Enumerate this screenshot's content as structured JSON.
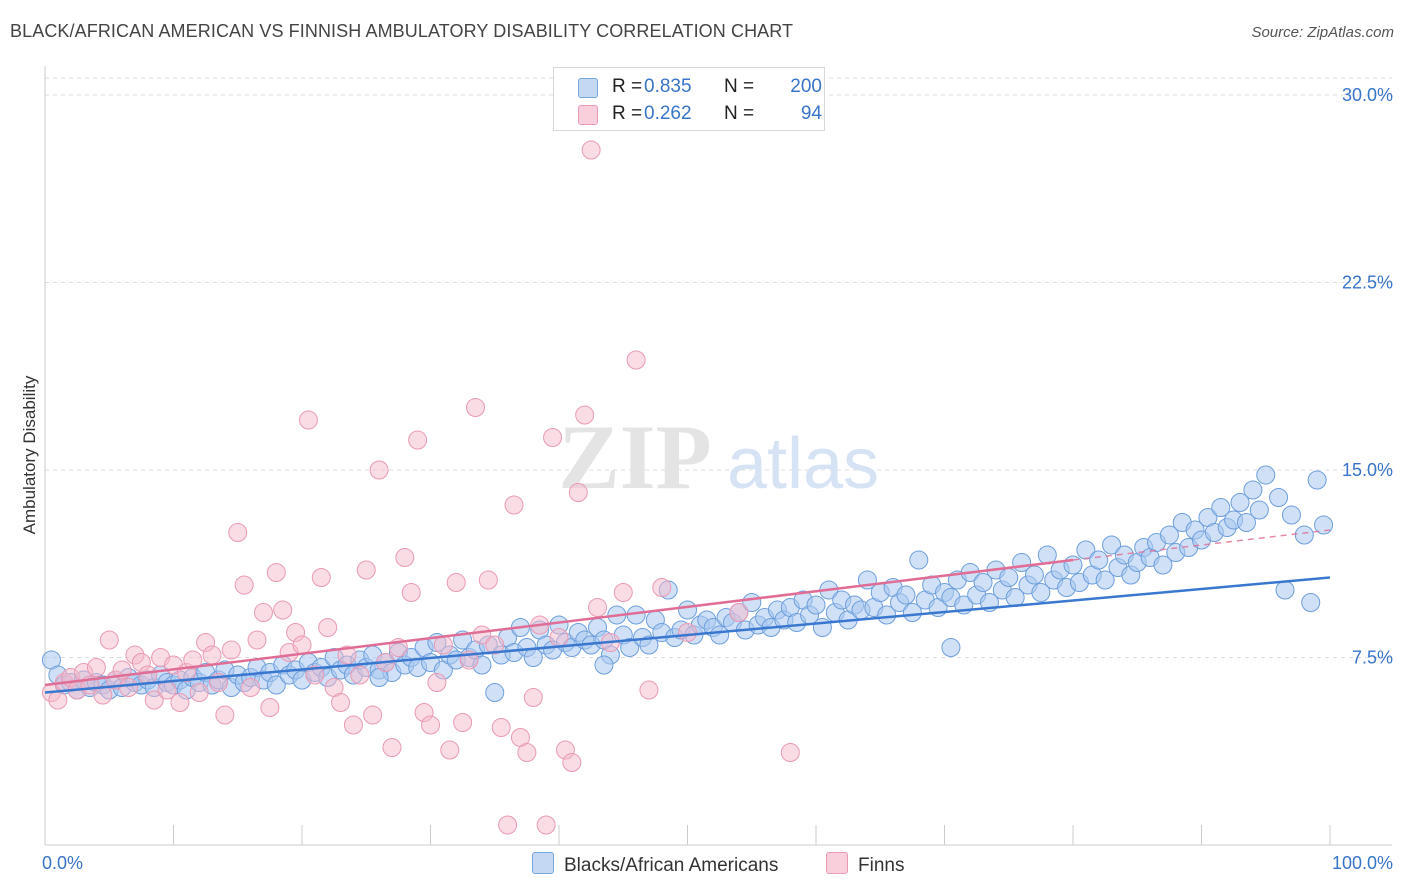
{
  "header": {
    "title": "BLACK/AFRICAN AMERICAN VS FINNISH AMBULATORY DISABILITY CORRELATION CHART",
    "source": "Source: ZipAtlas.com"
  },
  "watermark": {
    "zip": "ZIP",
    "atlas": "atlas"
  },
  "legend_top": {
    "rows": [
      {
        "r_label": "R =",
        "r_value": "0.835",
        "n_label": "N =",
        "n_value": "200",
        "color": "#a9c8f0"
      },
      {
        "r_label": "R =",
        "r_value": "0.262",
        "n_label": "N =",
        "n_value": "94",
        "color": "#f6b9cc"
      }
    ]
  },
  "legend_bottom": {
    "items": [
      {
        "label": "Blacks/African Americans",
        "color": "#a9c8f0"
      },
      {
        "label": "Finns",
        "color": "#f6b9cc"
      }
    ]
  },
  "chart_data": {
    "type": "scatter",
    "title": "BLACK/AFRICAN AMERICAN VS FINNISH AMBULATORY DISABILITY CORRELATION CHART",
    "xlabel": "",
    "ylabel": "Ambulatory Disability",
    "xlim": [
      0,
      100
    ],
    "ylim": [
      0,
      31
    ],
    "x_tick_labels": [
      "0.0%",
      "100.0%"
    ],
    "y_ticks": [
      7.5,
      15.0,
      22.5,
      30.0
    ],
    "y_tick_labels": [
      "7.5%",
      "15.0%",
      "22.5%",
      "30.0%"
    ],
    "grid": true,
    "legend_placement": "top-center",
    "colors": {
      "blue": "#3a78d0",
      "pink": "#e06d96",
      "blue_fill": "#a9c8f0",
      "pink_fill": "#f6b9cc",
      "tick_text": "#3874c8"
    },
    "series": [
      {
        "name": "Blacks/African Americans",
        "R": 0.835,
        "N": 200,
        "trend": {
          "x": [
            0,
            100
          ],
          "y": [
            6.1,
            10.7
          ]
        },
        "points": [
          [
            0.5,
            7.4
          ],
          [
            1,
            6.8
          ],
          [
            1.5,
            6.4
          ],
          [
            2,
            6.5
          ],
          [
            2.5,
            6.2
          ],
          [
            3,
            6.6
          ],
          [
            3.5,
            6.3
          ],
          [
            4,
            6.5
          ],
          [
            4.5,
            6.4
          ],
          [
            5,
            6.2
          ],
          [
            5.5,
            6.6
          ],
          [
            6,
            6.3
          ],
          [
            6.5,
            6.7
          ],
          [
            7,
            6.5
          ],
          [
            7.5,
            6.4
          ],
          [
            8,
            6.6
          ],
          [
            8.5,
            6.3
          ],
          [
            9,
            6.8
          ],
          [
            9.5,
            6.5
          ],
          [
            10,
            6.4
          ],
          [
            10.5,
            6.6
          ],
          [
            11,
            6.2
          ],
          [
            11.5,
            6.7
          ],
          [
            12,
            6.5
          ],
          [
            12.5,
            6.9
          ],
          [
            13,
            6.4
          ],
          [
            13.5,
            6.6
          ],
          [
            14,
            7.0
          ],
          [
            14.5,
            6.3
          ],
          [
            15,
            6.8
          ],
          [
            15.5,
            6.5
          ],
          [
            16,
            6.7
          ],
          [
            16.5,
            7.1
          ],
          [
            17,
            6.6
          ],
          [
            17.5,
            6.9
          ],
          [
            18,
            6.4
          ],
          [
            18.5,
            7.2
          ],
          [
            19,
            6.8
          ],
          [
            19.5,
            7.0
          ],
          [
            20,
            6.6
          ],
          [
            20.5,
            7.3
          ],
          [
            21,
            6.9
          ],
          [
            21.5,
            7.1
          ],
          [
            22,
            6.7
          ],
          [
            22.5,
            7.5
          ],
          [
            23,
            7.0
          ],
          [
            23.5,
            7.2
          ],
          [
            24,
            6.8
          ],
          [
            24.5,
            7.4
          ],
          [
            25,
            7.1
          ],
          [
            25.5,
            7.6
          ],
          [
            26,
            7.0
          ],
          [
            26.5,
            7.3
          ],
          [
            27,
            6.9
          ],
          [
            27.5,
            7.7
          ],
          [
            28,
            7.2
          ],
          [
            28.5,
            7.5
          ],
          [
            29,
            7.1
          ],
          [
            29.5,
            7.9
          ],
          [
            30,
            7.3
          ],
          [
            30.5,
            8.1
          ],
          [
            31,
            7.0
          ],
          [
            31.5,
            7.6
          ],
          [
            32,
            7.4
          ],
          [
            32.5,
            8.2
          ],
          [
            33,
            7.5
          ],
          [
            33.5,
            7.8
          ],
          [
            34,
            7.2
          ],
          [
            34.5,
            8.0
          ],
          [
            35,
            6.1
          ],
          [
            35.5,
            7.6
          ],
          [
            36,
            8.3
          ],
          [
            36.5,
            7.7
          ],
          [
            37,
            8.7
          ],
          [
            37.5,
            7.9
          ],
          [
            38,
            7.5
          ],
          [
            38.5,
            8.6
          ],
          [
            39,
            8.0
          ],
          [
            39.5,
            7.8
          ],
          [
            40,
            8.8
          ],
          [
            40.5,
            8.1
          ],
          [
            41,
            7.9
          ],
          [
            41.5,
            8.5
          ],
          [
            42,
            8.2
          ],
          [
            42.5,
            8.0
          ],
          [
            43,
            8.7
          ],
          [
            43.5,
            8.2
          ],
          [
            44,
            7.6
          ],
          [
            44.5,
            9.2
          ],
          [
            45,
            8.4
          ],
          [
            45.5,
            7.9
          ],
          [
            46,
            9.2
          ],
          [
            46.5,
            8.3
          ],
          [
            47,
            8.0
          ],
          [
            47.5,
            9.0
          ],
          [
            48,
            8.5
          ],
          [
            48.5,
            10.2
          ],
          [
            49,
            8.3
          ],
          [
            49.5,
            8.6
          ],
          [
            50,
            9.4
          ],
          [
            50.5,
            8.4
          ],
          [
            51,
            8.8
          ],
          [
            51.5,
            9.0
          ],
          [
            52,
            8.7
          ],
          [
            52.5,
            8.4
          ],
          [
            53,
            9.1
          ],
          [
            53.5,
            8.9
          ],
          [
            54,
            9.3
          ],
          [
            54.5,
            8.6
          ],
          [
            55,
            9.7
          ],
          [
            55.5,
            8.8
          ],
          [
            56,
            9.1
          ],
          [
            56.5,
            8.7
          ],
          [
            57,
            9.4
          ],
          [
            57.5,
            9.0
          ],
          [
            58,
            9.5
          ],
          [
            58.5,
            8.9
          ],
          [
            59,
            9.8
          ],
          [
            59.5,
            9.2
          ],
          [
            60,
            9.6
          ],
          [
            60.5,
            8.7
          ],
          [
            61,
            10.2
          ],
          [
            61.5,
            9.3
          ],
          [
            62,
            9.8
          ],
          [
            62.5,
            9.0
          ],
          [
            63,
            9.6
          ],
          [
            63.5,
            9.4
          ],
          [
            64,
            10.6
          ],
          [
            64.5,
            9.5
          ],
          [
            65,
            10.1
          ],
          [
            65.5,
            9.2
          ],
          [
            66,
            10.3
          ],
          [
            66.5,
            9.7
          ],
          [
            67,
            10.0
          ],
          [
            67.5,
            9.3
          ],
          [
            68,
            11.4
          ],
          [
            68.5,
            9.8
          ],
          [
            69,
            10.4
          ],
          [
            69.5,
            9.5
          ],
          [
            70,
            10.1
          ],
          [
            70.5,
            9.9
          ],
          [
            71,
            10.6
          ],
          [
            71.5,
            9.6
          ],
          [
            72,
            10.9
          ],
          [
            72.5,
            10.0
          ],
          [
            73,
            10.5
          ],
          [
            73.5,
            9.7
          ],
          [
            74,
            11.0
          ],
          [
            74.5,
            10.2
          ],
          [
            75,
            10.7
          ],
          [
            75.5,
            9.9
          ],
          [
            76,
            11.3
          ],
          [
            76.5,
            10.4
          ],
          [
            77,
            10.8
          ],
          [
            77.5,
            10.1
          ],
          [
            78,
            11.6
          ],
          [
            78.5,
            10.6
          ],
          [
            79,
            11.0
          ],
          [
            79.5,
            10.3
          ],
          [
            80,
            11.2
          ],
          [
            80.5,
            10.5
          ],
          [
            81,
            11.8
          ],
          [
            81.5,
            10.8
          ],
          [
            82,
            11.4
          ],
          [
            82.5,
            10.6
          ],
          [
            83,
            12.0
          ],
          [
            83.5,
            11.1
          ],
          [
            84,
            11.6
          ],
          [
            84.5,
            10.8
          ],
          [
            85,
            11.3
          ],
          [
            85.5,
            11.9
          ],
          [
            86,
            11.5
          ],
          [
            86.5,
            12.1
          ],
          [
            87,
            11.2
          ],
          [
            87.5,
            12.4
          ],
          [
            88,
            11.7
          ],
          [
            88.5,
            12.9
          ],
          [
            89,
            11.9
          ],
          [
            89.5,
            12.6
          ],
          [
            90,
            12.2
          ],
          [
            90.5,
            13.1
          ],
          [
            91,
            12.5
          ],
          [
            91.5,
            13.5
          ],
          [
            92,
            12.7
          ],
          [
            92.5,
            13.0
          ],
          [
            93,
            13.7
          ],
          [
            93.5,
            12.9
          ],
          [
            94,
            14.2
          ],
          [
            94.5,
            13.4
          ],
          [
            95,
            14.8
          ],
          [
            96,
            13.9
          ],
          [
            96.5,
            10.2
          ],
          [
            97,
            13.2
          ],
          [
            98,
            12.4
          ],
          [
            98.5,
            9.7
          ],
          [
            99,
            14.6
          ],
          [
            99.5,
            12.8
          ],
          [
            70.5,
            7.9
          ],
          [
            43.5,
            7.2
          ],
          [
            26,
            6.7
          ]
        ]
      },
      {
        "name": "Finns",
        "R": 0.262,
        "N": 94,
        "trend": {
          "x": [
            0,
            80
          ],
          "y": [
            6.4,
            11.4
          ]
        },
        "trend_dashed": {
          "x": [
            80,
            100
          ],
          "y": [
            11.4,
            12.6
          ]
        },
        "points": [
          [
            0.5,
            6.1
          ],
          [
            1,
            5.8
          ],
          [
            1.5,
            6.5
          ],
          [
            2,
            6.7
          ],
          [
            2.5,
            6.2
          ],
          [
            3,
            6.9
          ],
          [
            3.5,
            6.4
          ],
          [
            4,
            7.1
          ],
          [
            4.5,
            6.0
          ],
          [
            5,
            8.2
          ],
          [
            5.5,
            6.6
          ],
          [
            6,
            7.0
          ],
          [
            6.5,
            6.3
          ],
          [
            7,
            7.6
          ],
          [
            7.5,
            7.3
          ],
          [
            8,
            6.8
          ],
          [
            8.5,
            5.8
          ],
          [
            9,
            7.5
          ],
          [
            9.5,
            6.2
          ],
          [
            10,
            7.2
          ],
          [
            10.5,
            5.7
          ],
          [
            11,
            6.9
          ],
          [
            11.5,
            7.4
          ],
          [
            12,
            6.1
          ],
          [
            12.5,
            8.1
          ],
          [
            13,
            7.6
          ],
          [
            13.5,
            6.5
          ],
          [
            14,
            5.2
          ],
          [
            14.5,
            7.8
          ],
          [
            15,
            12.5
          ],
          [
            15.5,
            10.4
          ],
          [
            16,
            6.3
          ],
          [
            16.5,
            8.2
          ],
          [
            17,
            9.3
          ],
          [
            17.5,
            5.5
          ],
          [
            18,
            10.9
          ],
          [
            18.5,
            9.4
          ],
          [
            19,
            7.7
          ],
          [
            19.5,
            8.5
          ],
          [
            20,
            8.0
          ],
          [
            20.5,
            17.0
          ],
          [
            21,
            6.8
          ],
          [
            21.5,
            10.7
          ],
          [
            22,
            8.7
          ],
          [
            22.5,
            6.3
          ],
          [
            23,
            5.7
          ],
          [
            23.5,
            7.6
          ],
          [
            24,
            4.8
          ],
          [
            24.5,
            6.8
          ],
          [
            25,
            11.0
          ],
          [
            25.5,
            5.2
          ],
          [
            26,
            15.0
          ],
          [
            26.5,
            7.3
          ],
          [
            27,
            3.9
          ],
          [
            27.5,
            7.9
          ],
          [
            28,
            11.5
          ],
          [
            28.5,
            10.1
          ],
          [
            29,
            16.2
          ],
          [
            29.5,
            5.3
          ],
          [
            30,
            4.8
          ],
          [
            30.5,
            6.5
          ],
          [
            31,
            8.0
          ],
          [
            31.5,
            3.8
          ],
          [
            32,
            10.5
          ],
          [
            32.5,
            4.9
          ],
          [
            33,
            7.4
          ],
          [
            33.5,
            17.5
          ],
          [
            34,
            8.4
          ],
          [
            34.5,
            10.6
          ],
          [
            35,
            8.0
          ],
          [
            35.5,
            4.7
          ],
          [
            36,
            0.8
          ],
          [
            36.5,
            13.6
          ],
          [
            37,
            4.3
          ],
          [
            37.5,
            3.7
          ],
          [
            38,
            5.9
          ],
          [
            38.5,
            8.8
          ],
          [
            39,
            0.8
          ],
          [
            39.5,
            16.3
          ],
          [
            40,
            8.3
          ],
          [
            40.5,
            3.8
          ],
          [
            41,
            3.3
          ],
          [
            41.5,
            14.1
          ],
          [
            42,
            17.2
          ],
          [
            42.5,
            27.8
          ],
          [
            43,
            9.5
          ],
          [
            44,
            8.1
          ],
          [
            45,
            10.1
          ],
          [
            46,
            19.4
          ],
          [
            47,
            6.2
          ],
          [
            48,
            10.3
          ],
          [
            50,
            8.5
          ],
          [
            54,
            9.3
          ],
          [
            58,
            3.7
          ]
        ]
      }
    ]
  }
}
